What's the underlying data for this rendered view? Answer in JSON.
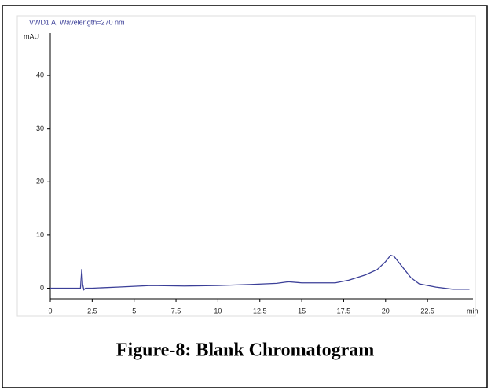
{
  "chart_data": {
    "type": "line",
    "title": "VWD1 A, Wavelength=270 nm",
    "y_label": "mAU",
    "x_label": "min",
    "caption": "Figure-8: Blank Chromatogram",
    "x": [
      0,
      1.8,
      1.88,
      1.93,
      2.0,
      2.1,
      2.5,
      4,
      6,
      8,
      10,
      12,
      13.5,
      14.2,
      15,
      17,
      17.8,
      18.8,
      19.5,
      20,
      20.3,
      20.5,
      21,
      21.5,
      22,
      23,
      24,
      25
    ],
    "series": [
      {
        "color": "#3b3f98",
        "values": [
          0,
          0,
          3.6,
          0.8,
          -0.3,
          0,
          0,
          0.2,
          0.5,
          0.4,
          0.5,
          0.7,
          0.9,
          1.2,
          1.0,
          1.0,
          1.5,
          2.5,
          3.5,
          5.0,
          6.2,
          6.0,
          4.0,
          2.0,
          0.8,
          0.2,
          -0.2,
          -0.2
        ]
      }
    ],
    "xlim": [
      0,
      25
    ],
    "ylim": [
      -2,
      48
    ],
    "xticks": [
      0,
      2.5,
      5,
      7.5,
      10,
      12.5,
      15,
      17.5,
      20,
      22.5
    ],
    "yticks": [
      0,
      10,
      20,
      30,
      40
    ]
  }
}
